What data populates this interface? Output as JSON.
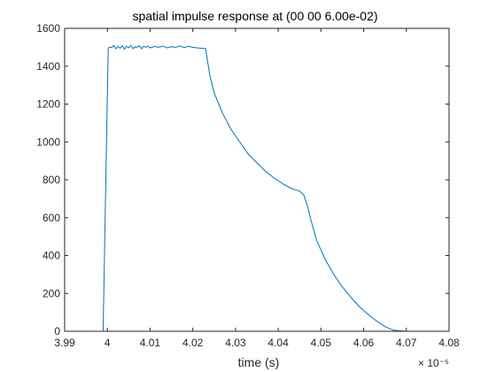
{
  "chart_data": {
    "type": "line",
    "title": "spatial impulse response at (00 00 6.00e-02)",
    "xlabel": "time (s)",
    "ylabel": "",
    "x_multiplier": "× 10⁻⁵",
    "xlim": [
      3.99,
      4.08
    ],
    "ylim": [
      0,
      1600
    ],
    "xticks": [
      3.99,
      4.0,
      4.01,
      4.02,
      4.03,
      4.04,
      4.05,
      4.06,
      4.07,
      4.08
    ],
    "xtick_labels": [
      "3.99",
      "4",
      "4.01",
      "4.02",
      "4.03",
      "4.04",
      "4.05",
      "4.06",
      "4.07",
      "4.08"
    ],
    "yticks": [
      0,
      200,
      400,
      600,
      800,
      1000,
      1200,
      1400,
      1600
    ],
    "ytick_labels": [
      "0",
      "200",
      "400",
      "600",
      "800",
      "1000",
      "1200",
      "1400",
      "1600"
    ],
    "grid": false,
    "series": [
      {
        "color": "#0072BD",
        "x": [
          3.999,
          4.0002,
          4.0005,
          4.001,
          4.0015,
          4.002,
          4.0025,
          4.003,
          4.0035,
          4.004,
          4.0045,
          4.005,
          4.0055,
          4.006,
          4.0065,
          4.007,
          4.0075,
          4.008,
          4.0085,
          4.009,
          4.0095,
          4.01,
          4.011,
          4.012,
          4.013,
          4.014,
          4.015,
          4.016,
          4.017,
          4.018,
          4.019,
          4.02,
          4.021,
          4.022,
          4.023,
          4.024,
          4.025,
          4.027,
          4.029,
          4.031,
          4.033,
          4.035,
          4.037,
          4.039,
          4.041,
          4.043,
          4.045,
          4.046,
          4.047,
          4.0475,
          4.049,
          4.051,
          4.053,
          4.055,
          4.057,
          4.059,
          4.061,
          4.063,
          4.065,
          4.067,
          4.069,
          4.0705,
          4.072,
          4.075
        ],
        "y": [
          0,
          1495,
          1500,
          1498,
          1510,
          1492,
          1505,
          1495,
          1508,
          1490,
          1505,
          1498,
          1510,
          1493,
          1502,
          1500,
          1508,
          1492,
          1505,
          1500,
          1506,
          1497,
          1504,
          1500,
          1506,
          1497,
          1503,
          1500,
          1507,
          1498,
          1505,
          1500,
          1497,
          1495,
          1493,
          1350,
          1260,
          1150,
          1065,
          1000,
          935,
          890,
          845,
          810,
          780,
          755,
          740,
          720,
          650,
          600,
          480,
          380,
          300,
          235,
          180,
          130,
          90,
          55,
          25,
          5,
          2,
          0,
          0,
          0
        ]
      }
    ]
  }
}
